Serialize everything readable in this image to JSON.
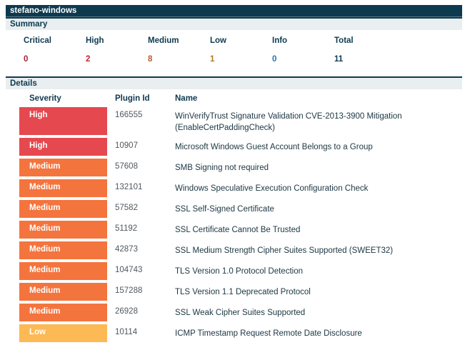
{
  "host": {
    "title": "stefano-windows"
  },
  "summary": {
    "heading": "Summary",
    "columns": [
      {
        "label": "Critical",
        "value": "0",
        "value_color": "#9e2433"
      },
      {
        "label": "High",
        "value": "2",
        "value_color": "#c42430"
      },
      {
        "label": "Medium",
        "value": "8",
        "value_color": "#bf5a26"
      },
      {
        "label": "Low",
        "value": "1",
        "value_color": "#b5761f"
      },
      {
        "label": "Info",
        "value": "0",
        "value_color": "#1d74b8"
      },
      {
        "label": "Total",
        "value": "11",
        "value_color": "#0e3a50"
      }
    ]
  },
  "details": {
    "heading": "Details",
    "table": {
      "headers": {
        "severity": "Severity",
        "plugin_id": "Plugin Id",
        "name": "Name"
      },
      "severity_colors": {
        "High": "#e5484f",
        "Medium": "#f4743e",
        "Low": "#fdb954"
      },
      "rows": [
        {
          "severity": "High",
          "plugin_id": "166555",
          "name": "WinVerifyTrust Signature Validation CVE-2013-3900 Mitigation (EnableCertPaddingCheck)"
        },
        {
          "severity": "High",
          "plugin_id": "10907",
          "name": "Microsoft Windows Guest Account Belongs to a Group"
        },
        {
          "severity": "Medium",
          "plugin_id": "57608",
          "name": "SMB Signing not required"
        },
        {
          "severity": "Medium",
          "plugin_id": "132101",
          "name": "Windows Speculative Execution Configuration Check"
        },
        {
          "severity": "Medium",
          "plugin_id": "57582",
          "name": "SSL Self-Signed Certificate"
        },
        {
          "severity": "Medium",
          "plugin_id": "51192",
          "name": "SSL Certificate Cannot Be Trusted"
        },
        {
          "severity": "Medium",
          "plugin_id": "42873",
          "name": "SSL Medium Strength Cipher Suites Supported (SWEET32)"
        },
        {
          "severity": "Medium",
          "plugin_id": "104743",
          "name": "TLS Version 1.0 Protocol Detection"
        },
        {
          "severity": "Medium",
          "plugin_id": "157288",
          "name": "TLS Version 1.1 Deprecated Protocol"
        },
        {
          "severity": "Medium",
          "plugin_id": "26928",
          "name": "SSL Weak Cipher Suites Supported"
        },
        {
          "severity": "Low",
          "plugin_id": "10114",
          "name": "ICMP Timestamp Request Remote Date Disclosure"
        }
      ]
    }
  },
  "colors": {
    "navy": "#0e3a50",
    "band_background": "#e9eef0",
    "bottom_rule": "#d8d8d8"
  }
}
